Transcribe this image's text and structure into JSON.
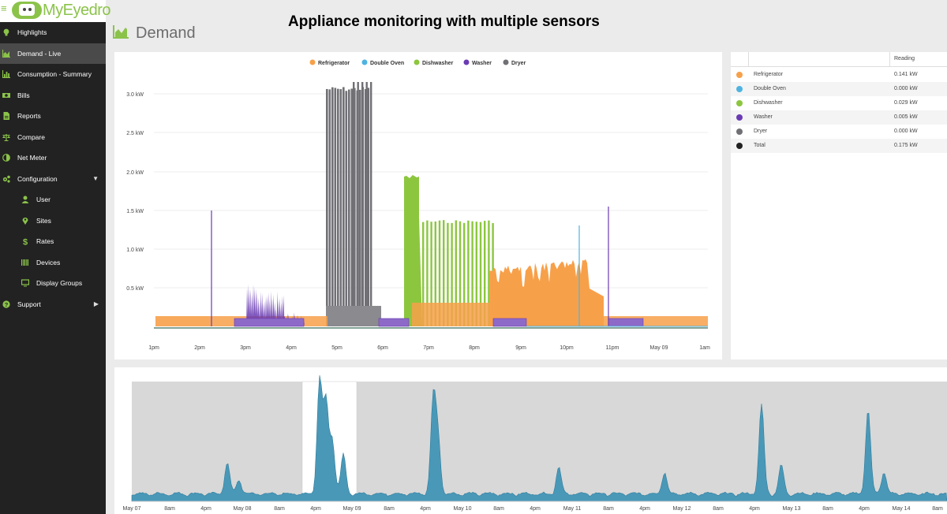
{
  "app": {
    "brand": "MyEyedro"
  },
  "overlay_title": "Appliance monitoring with multiple sensors",
  "page": {
    "title": "Demand"
  },
  "sidebar": {
    "items": [
      {
        "label": "Highlights",
        "icon": "lightbulb-icon"
      },
      {
        "label": "Demand - Live",
        "icon": "area-chart-icon",
        "active": true
      },
      {
        "label": "Consumption - Summary",
        "icon": "bar-chart-icon"
      },
      {
        "label": "Bills",
        "icon": "money-icon"
      },
      {
        "label": "Reports",
        "icon": "document-icon"
      },
      {
        "label": "Compare",
        "icon": "balance-scale-icon"
      },
      {
        "label": "Net Meter",
        "icon": "half-circle-icon"
      },
      {
        "label": "Configuration",
        "icon": "cogs-icon"
      },
      {
        "label": "User",
        "icon": "user-icon"
      },
      {
        "label": "Sites",
        "icon": "map-marker-icon"
      },
      {
        "label": "Rates",
        "icon": "dollar-icon"
      },
      {
        "label": "Devices",
        "icon": "barcode-icon"
      },
      {
        "label": "Display Groups",
        "icon": "monitor-icon"
      },
      {
        "label": "Support",
        "icon": "question-circle-icon"
      }
    ]
  },
  "colors": {
    "refrigerator": "#f7a04a",
    "double_oven": "#4fb3e0",
    "dishwasher": "#8cc63f",
    "washer": "#6a3bb3",
    "dryer": "#707075",
    "total": "#222222",
    "overview": "#4a98b8",
    "accent": "#8bc34a"
  },
  "chart_data": [
    {
      "type": "area",
      "legend_position": "top",
      "grid": true,
      "series": [
        {
          "name": "Refrigerator"
        },
        {
          "name": "Double Oven"
        },
        {
          "name": "Dishwasher"
        },
        {
          "name": "Washer"
        },
        {
          "name": "Dryer"
        }
      ],
      "y_ticks": [
        "0.5 kW",
        "1.0 kW",
        "1.5 kW",
        "2.0 kW",
        "2.5 kW",
        "3.0 kW"
      ],
      "x_ticks": [
        "1pm",
        "2pm",
        "3pm",
        "4pm",
        "5pm",
        "6pm",
        "7pm",
        "8pm",
        "9pm",
        "10pm",
        "11pm",
        "May 09",
        "1am"
      ],
      "ylim_kw": [
        0,
        3.3
      ],
      "approx_peaks_kw": {
        "Refrigerator": 0.8,
        "Double Oven": 1.3,
        "Dishwasher": 1.95,
        "Washer": 1.58,
        "Dryer": 3.15
      }
    },
    {
      "type": "area",
      "name": "overview",
      "x_ticks": [
        "May 07",
        "8am",
        "4pm",
        "May 08",
        "8am",
        "4pm",
        "May 09",
        "8am",
        "4pm",
        "May 10",
        "8am",
        "4pm",
        "May 11",
        "8am",
        "4pm",
        "May 12",
        "8am",
        "4pm",
        "May 13",
        "8am",
        "4pm",
        "May 14",
        "8am"
      ]
    }
  ],
  "readings": {
    "header": "Reading",
    "rows": [
      {
        "name": "Refrigerator",
        "value": "0.141 kW",
        "color": "#f7a04a"
      },
      {
        "name": "Double Oven",
        "value": "0.000 kW",
        "color": "#4fb3e0"
      },
      {
        "name": "Dishwasher",
        "value": "0.029 kW",
        "color": "#8cc63f"
      },
      {
        "name": "Washer",
        "value": "0.005 kW",
        "color": "#6a3bb3"
      },
      {
        "name": "Dryer",
        "value": "0.000 kW",
        "color": "#707075"
      },
      {
        "name": "Total",
        "value": "0.175 kW",
        "color": "#222222"
      }
    ]
  }
}
